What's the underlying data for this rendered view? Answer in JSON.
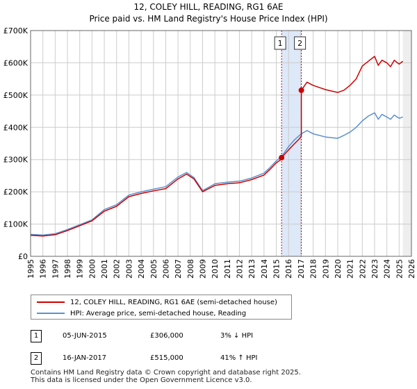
{
  "title_line1": "12, COLEY HILL, READING, RG1 6AE",
  "title_line2": "Price paid vs. HM Land Registry's House Price Index (HPI)",
  "colors": {
    "property": "#cc0000",
    "hpi": "#5b8fd0",
    "band": "#dde8f8",
    "grid": "#cccccc",
    "sale_marker": "#cc0000"
  },
  "chart_data": {
    "type": "line",
    "xlim": [
      1995,
      2026
    ],
    "ylim": [
      0,
      700000
    ],
    "y_ticks": [
      0,
      100000,
      200000,
      300000,
      400000,
      500000,
      600000,
      700000
    ],
    "y_tick_labels": [
      "£0",
      "£100K",
      "£200K",
      "£300K",
      "£400K",
      "£500K",
      "£600K",
      "£700K"
    ],
    "x_tick_labels": [
      "1995",
      "1996",
      "1997",
      "1998",
      "1999",
      "2000",
      "2001",
      "2002",
      "2003",
      "2004",
      "2005",
      "2006",
      "2007",
      "2008",
      "2009",
      "2010",
      "2011",
      "2012",
      "2013",
      "2014",
      "2015",
      "2016",
      "2017",
      "2018",
      "2019",
      "2020",
      "2021",
      "2022",
      "2023",
      "2024",
      "2025",
      "2026"
    ],
    "series": [
      {
        "name": "12, COLEY HILL, READING, RG1 6AE (semi-detached house)",
        "color": "#cc0000",
        "x": [
          1995.0,
          1996.0,
          1997.0,
          1998.0,
          1999.0,
          2000.0,
          2001.0,
          2002.0,
          2003.0,
          2004.0,
          2005.0,
          2006.0,
          2007.0,
          2007.7,
          2008.3,
          2009.0,
          2009.5,
          2010.0,
          2011.0,
          2012.0,
          2013.0,
          2014.0,
          2014.5,
          2015.0,
          2015.43,
          2015.43,
          2016.0,
          2016.5,
          2016.9,
          2017.04,
          2017.04,
          2017.5,
          2018.0,
          2019.0,
          2020.0,
          2020.5,
          2021.0,
          2021.5,
          2022.0,
          2022.5,
          2023.0,
          2023.3,
          2023.6,
          2024.0,
          2024.3,
          2024.6,
          2025.0,
          2025.3
        ],
        "values": [
          65000,
          63000,
          67000,
          80000,
          95000,
          110000,
          140000,
          155000,
          185000,
          195000,
          203000,
          210000,
          240000,
          255000,
          240000,
          200000,
          210000,
          220000,
          225000,
          228000,
          238000,
          252000,
          270000,
          290000,
          301000,
          306000,
          330000,
          350000,
          365000,
          373000,
          515000,
          540000,
          530000,
          517000,
          508000,
          515000,
          530000,
          550000,
          590000,
          605000,
          620000,
          592000,
          608000,
          600000,
          588000,
          608000,
          596000,
          605000
        ]
      },
      {
        "name": "HPI: Average price, semi-detached house, Reading",
        "color": "#5b8fd0",
        "x": [
          1995.0,
          1996.0,
          1997.0,
          1998.0,
          1999.0,
          2000.0,
          2001.0,
          2002.0,
          2003.0,
          2004.0,
          2005.0,
          2006.0,
          2007.0,
          2007.7,
          2008.3,
          2009.0,
          2009.5,
          2010.0,
          2011.0,
          2012.0,
          2013.0,
          2014.0,
          2014.5,
          2015.0,
          2015.43,
          2016.0,
          2016.5,
          2017.04,
          2017.5,
          2018.0,
          2019.0,
          2020.0,
          2020.5,
          2021.0,
          2021.5,
          2022.0,
          2022.5,
          2023.0,
          2023.3,
          2023.6,
          2024.0,
          2024.3,
          2024.6,
          2025.0,
          2025.3
        ],
        "values": [
          68000,
          66000,
          70000,
          83000,
          98000,
          113000,
          145000,
          160000,
          190000,
          200000,
          208000,
          216000,
          246000,
          260000,
          244000,
          204000,
          214000,
          225000,
          230000,
          233000,
          243000,
          258000,
          276000,
          296000,
          309000,
          340000,
          362000,
          380000,
          390000,
          380000,
          370000,
          366000,
          375000,
          385000,
          400000,
          420000,
          435000,
          445000,
          425000,
          440000,
          432000,
          425000,
          438000,
          428000,
          432000
        ]
      }
    ],
    "sales": [
      {
        "label": "1",
        "date": "05-JUN-2015",
        "x": 2015.43,
        "price": 306000
      },
      {
        "label": "2",
        "date": "16-JAN-2017",
        "x": 2017.04,
        "price": 515000
      }
    ]
  },
  "legend": {
    "property_label": "12, COLEY HILL, READING, RG1 6AE (semi-detached house)",
    "hpi_label": "HPI: Average price, semi-detached house, Reading"
  },
  "sales_table": [
    {
      "marker": "1",
      "date": "05-JUN-2015",
      "price": "£306,000",
      "hpi": "3% ↓ HPI"
    },
    {
      "marker": "2",
      "date": "16-JAN-2017",
      "price": "£515,000",
      "hpi": "41% ↑ HPI"
    }
  ],
  "footer": {
    "line1": "Contains HM Land Registry data © Crown copyright and database right 2025.",
    "line2": "This data is licensed under the Open Government Licence v3.0."
  }
}
